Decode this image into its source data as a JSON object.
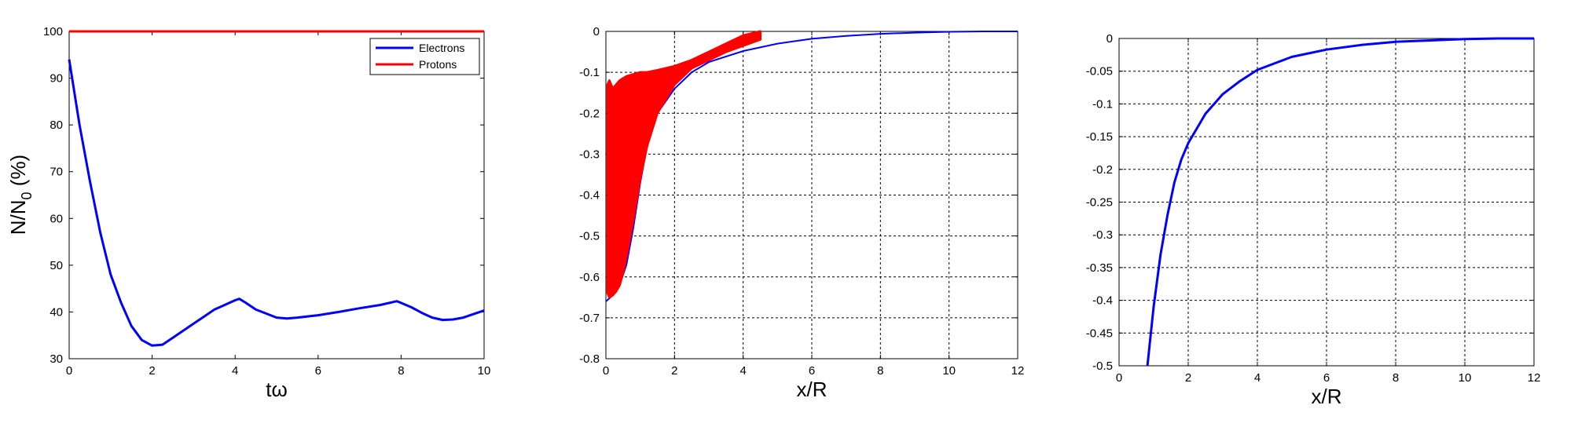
{
  "chart_data": [
    {
      "type": "line",
      "xlabel": "tω",
      "ylabel_main": "N/N",
      "ylabel_sub": "0",
      "ylabel_tail": " (%)",
      "xlim": [
        0,
        10
      ],
      "ylim": [
        30,
        100
      ],
      "xticks": [
        0,
        2,
        4,
        6,
        8,
        10
      ],
      "yticks": [
        30,
        40,
        50,
        60,
        70,
        80,
        90,
        100
      ],
      "grid": false,
      "legend_position": "top-right",
      "series": [
        {
          "name": "Electrons",
          "color": "#0000ff",
          "x": [
            0,
            0.25,
            0.5,
            0.75,
            1.0,
            1.25,
            1.5,
            1.75,
            2.0,
            2.25,
            2.5,
            3.0,
            3.5,
            3.75,
            4.0,
            4.1,
            4.25,
            4.5,
            5.0,
            5.25,
            5.5,
            6.0,
            6.5,
            7.0,
            7.5,
            7.9,
            8.25,
            8.5,
            8.75,
            9.0,
            9.25,
            9.5,
            10.0
          ],
          "y": [
            94,
            80,
            68,
            57,
            48,
            42,
            37,
            34,
            32.8,
            33,
            34.5,
            37.5,
            40.5,
            41.5,
            42.5,
            42.8,
            42,
            40.5,
            38.8,
            38.6,
            38.8,
            39.3,
            40,
            40.8,
            41.5,
            42.3,
            41,
            39.8,
            38.8,
            38.3,
            38.4,
            38.8,
            40.3
          ]
        },
        {
          "name": "Protons",
          "color": "#ff0000",
          "x": [
            0,
            10
          ],
          "y": [
            100,
            100
          ]
        }
      ]
    },
    {
      "type": "scatter",
      "xlabel": "x/R",
      "xlim": [
        0,
        12
      ],
      "ylim": [
        -0.8,
        0
      ],
      "xticks": [
        0,
        2,
        4,
        6,
        8,
        10,
        12
      ],
      "yticks": [
        -0.8,
        -0.7,
        -0.6,
        -0.5,
        -0.4,
        -0.3,
        -0.2,
        -0.1,
        0
      ],
      "ytick_labels": [
        "-0.8",
        "-0.7",
        "-0.6",
        "-0.5",
        "-0.4",
        "-0.3",
        "-0.2",
        "-0.1",
        "0"
      ],
      "grid": true,
      "series": [
        {
          "name": "",
          "kind": "line",
          "color": "#0000ff",
          "x": [
            0,
            0.2,
            0.4,
            0.6,
            0.8,
            1.0,
            1.2,
            1.5,
            2.0,
            2.5,
            3.0,
            4.0,
            5.0,
            6.0,
            7.0,
            8.0,
            9.0,
            10.0,
            11.0,
            12.0
          ],
          "y": [
            -0.66,
            -0.645,
            -0.62,
            -0.57,
            -0.48,
            -0.37,
            -0.28,
            -0.2,
            -0.14,
            -0.1,
            -0.075,
            -0.048,
            -0.03,
            -0.018,
            -0.011,
            -0.006,
            -0.003,
            -0.001,
            0,
            0
          ]
        },
        {
          "name": "",
          "kind": "band",
          "color": "#ff0000",
          "x": [
            0.05,
            0.1,
            0.2,
            0.3,
            0.4,
            0.5,
            0.6,
            0.8,
            1.0,
            1.2,
            1.5,
            2.0,
            2.5,
            3.0,
            3.5,
            4.0,
            4.5
          ],
          "upper": [
            -0.13,
            -0.12,
            -0.14,
            -0.13,
            -0.12,
            -0.115,
            -0.11,
            -0.105,
            -0.1,
            -0.1,
            -0.095,
            -0.085,
            -0.07,
            -0.05,
            -0.03,
            -0.01,
            0
          ],
          "lower": [
            -0.64,
            -0.65,
            -0.645,
            -0.635,
            -0.62,
            -0.59,
            -0.55,
            -0.46,
            -0.36,
            -0.28,
            -0.2,
            -0.13,
            -0.09,
            -0.07,
            -0.05,
            -0.035,
            -0.02
          ]
        }
      ]
    },
    {
      "type": "line",
      "xlabel": "x/R",
      "xlim": [
        0,
        12
      ],
      "ylim": [
        -0.5,
        0
      ],
      "xticks": [
        0,
        2,
        4,
        6,
        8,
        10,
        12
      ],
      "yticks": [
        -0.5,
        -0.45,
        -0.4,
        -0.35,
        -0.3,
        -0.25,
        -0.2,
        -0.15,
        -0.1,
        -0.05,
        0
      ],
      "ytick_labels": [
        "-0.5",
        "-0.45",
        "-0.4",
        "-0.35",
        "-0.3",
        "-0.25",
        "-0.2",
        "-0.15",
        "-0.1",
        "-0.05",
        "0"
      ],
      "grid": true,
      "series": [
        {
          "name": "",
          "color": "#0000ff",
          "x": [
            0.82,
            0.9,
            1.0,
            1.2,
            1.4,
            1.6,
            1.8,
            2.0,
            2.5,
            3.0,
            3.5,
            4.0,
            5.0,
            6.0,
            7.0,
            8.0,
            9.0,
            10.0,
            11.0,
            12.0
          ],
          "y": [
            -0.5,
            -0.46,
            -0.41,
            -0.33,
            -0.27,
            -0.22,
            -0.185,
            -0.16,
            -0.115,
            -0.085,
            -0.065,
            -0.048,
            -0.028,
            -0.017,
            -0.01,
            -0.005,
            -0.003,
            -0.001,
            0,
            0
          ]
        }
      ]
    }
  ]
}
